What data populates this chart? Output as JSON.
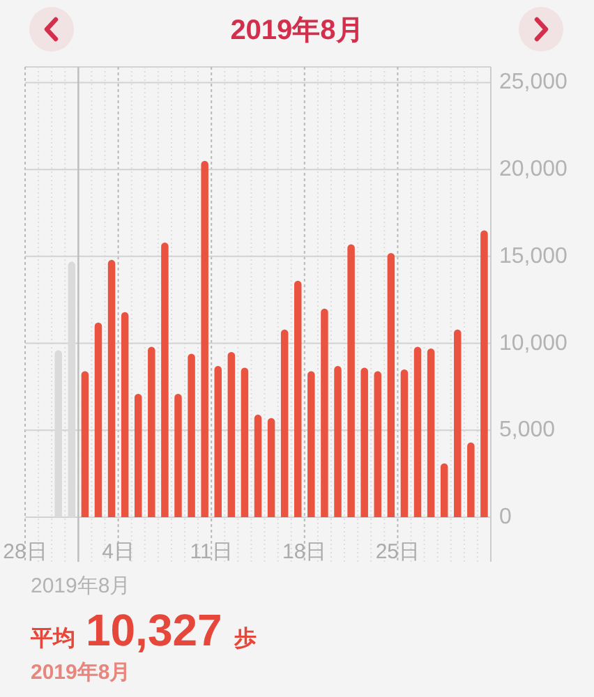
{
  "chart_data": {
    "type": "bar",
    "title": "2019年8月",
    "x": [
      "2019-07-30T12:00",
      "2019-07-31T12:00",
      "2019-08-01T12:00",
      "2019-08-02T12:00",
      "2019-08-03T12:00",
      "2019-08-04T12:00",
      "2019-08-05T12:00",
      "2019-08-06T12:00",
      "2019-08-07T12:00",
      "2019-08-08T12:00",
      "2019-08-09T12:00",
      "2019-08-10T12:00",
      "2019-08-11T12:00",
      "2019-08-12T12:00",
      "2019-08-13T12:00",
      "2019-08-14T12:00",
      "2019-08-15T12:00",
      "2019-08-16T12:00",
      "2019-08-17T12:00",
      "2019-08-18T12:00",
      "2019-08-19T12:00",
      "2019-08-20T12:00",
      "2019-08-21T12:00",
      "2019-08-22T12:00",
      "2019-08-23T12:00",
      "2019-08-24T12:00",
      "2019-08-25T12:00",
      "2019-08-26T12:00",
      "2019-08-27T12:00",
      "2019-08-28T12:00",
      "2019-08-29T12:00",
      "2019-08-30T12:00",
      "2019-08-31T12:00"
    ],
    "values": [
      9600,
      14700,
      8400,
      11200,
      14800,
      11800,
      7100,
      9800,
      15800,
      7100,
      9400,
      20500,
      8700,
      9500,
      8600,
      5900,
      5700,
      10800,
      13600,
      8400,
      12000,
      8700,
      15700,
      8600,
      8400,
      15200,
      8500,
      9800,
      9700,
      3100,
      10800,
      4300,
      16500
    ],
    "colors": [
      "#dadada",
      "#dadada",
      "#e9533f",
      "#e9533f",
      "#e9533f",
      "#e9533f",
      "#e9533f",
      "#e9533f",
      "#e9533f",
      "#e9533f",
      "#e9533f",
      "#e9533f",
      "#e9533f",
      "#e9533f",
      "#e9533f",
      "#e9533f",
      "#e9533f",
      "#e9533f",
      "#e9533f",
      "#e9533f",
      "#e9533f",
      "#e9533f",
      "#e9533f",
      "#e9533f",
      "#e9533f",
      "#e9533f",
      "#e9533f",
      "#e9533f",
      "#e9533f",
      "#e9533f",
      "#e9533f",
      "#e9533f",
      "#e9533f"
    ],
    "xlim": [
      "2019-07-28",
      "2019-09-01"
    ],
    "xticks": [
      {
        "value": "2019-07-28",
        "label": "28日"
      },
      {
        "value": "2019-07-29",
        "label": null
      },
      {
        "value": "2019-07-30",
        "label": null
      },
      {
        "value": "2019-07-31",
        "label": null
      },
      {
        "value": "2019-08-01",
        "label": null
      },
      {
        "value": "2019-08-02",
        "label": null
      },
      {
        "value": "2019-08-03",
        "label": null
      },
      {
        "value": "2019-08-04",
        "label": "4日"
      },
      {
        "value": "2019-08-05",
        "label": null
      },
      {
        "value": "2019-08-06",
        "label": null
      },
      {
        "value": "2019-08-07",
        "label": null
      },
      {
        "value": "2019-08-08",
        "label": null
      },
      {
        "value": "2019-08-09",
        "label": null
      },
      {
        "value": "2019-08-10",
        "label": null
      },
      {
        "value": "2019-08-11",
        "label": "11日"
      },
      {
        "value": "2019-08-12",
        "label": null
      },
      {
        "value": "2019-08-13",
        "label": null
      },
      {
        "value": "2019-08-14",
        "label": null
      },
      {
        "value": "2019-08-15",
        "label": null
      },
      {
        "value": "2019-08-16",
        "label": null
      },
      {
        "value": "2019-08-17",
        "label": null
      },
      {
        "value": "2019-08-18",
        "label": "18日"
      },
      {
        "value": "2019-08-19",
        "label": null
      },
      {
        "value": "2019-08-20",
        "label": null
      },
      {
        "value": "2019-08-21",
        "label": null
      },
      {
        "value": "2019-08-22",
        "label": null
      },
      {
        "value": "2019-08-23",
        "label": null
      },
      {
        "value": "2019-08-24",
        "label": null
      },
      {
        "value": "2019-08-25",
        "label": "25日"
      },
      {
        "value": "2019-08-26",
        "label": null
      },
      {
        "value": "2019-08-27",
        "label": null
      },
      {
        "value": "2019-08-28",
        "label": null
      },
      {
        "value": "2019-08-29",
        "label": null
      },
      {
        "value": "2019-08-30",
        "label": null
      },
      {
        "value": "2019-08-31",
        "label": null
      }
    ],
    "ylim": [
      0,
      25900
    ],
    "yticks": [
      0,
      {
        "value": 5000,
        "label": "5,000"
      },
      {
        "value": 10000,
        "label": "10,000"
      },
      {
        "value": 15000,
        "label": "15,000"
      },
      {
        "value": 20000,
        "label": "20,000"
      },
      {
        "value": 25000,
        "label": "25,000"
      }
    ],
    "grid": true,
    "ref_lines": [
      {
        "axis": "x",
        "value": "2019-08-01",
        "color": "#bdbdbd"
      }
    ],
    "annotations": [
      "2019年8月",
      "平均 10,327 歩",
      "2019年8月"
    ]
  }
}
